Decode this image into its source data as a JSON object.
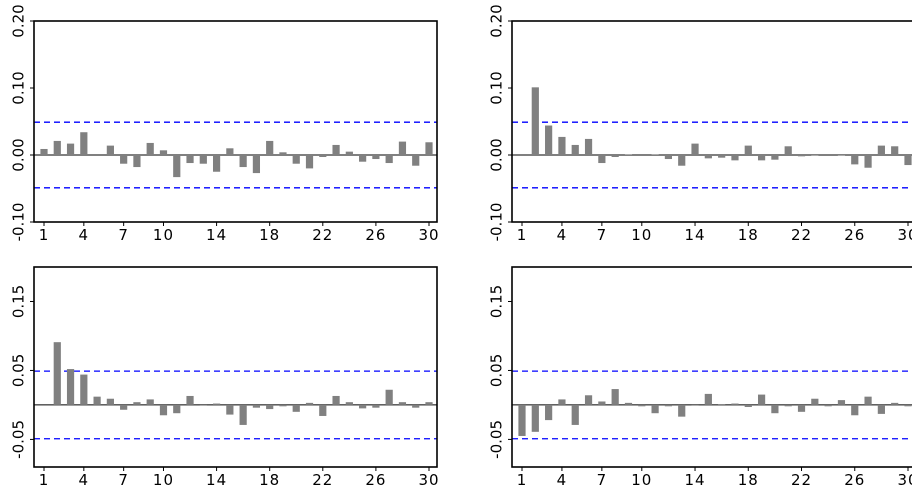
{
  "chart_data": [
    {
      "type": "bar",
      "title": "",
      "xlabel": "",
      "ylabel": "",
      "categories": [
        1,
        2,
        3,
        4,
        5,
        6,
        7,
        8,
        9,
        10,
        11,
        12,
        13,
        14,
        15,
        16,
        17,
        18,
        19,
        20,
        21,
        22,
        23,
        24,
        25,
        26,
        27,
        28,
        29,
        30
      ],
      "values": [
        0.009,
        0.021,
        0.017,
        0.034,
        0.0,
        0.014,
        -0.013,
        -0.018,
        0.018,
        0.007,
        -0.033,
        -0.012,
        -0.013,
        -0.025,
        0.01,
        -0.018,
        -0.027,
        0.021,
        0.004,
        -0.013,
        -0.02,
        -0.003,
        0.015,
        0.005,
        -0.01,
        -0.006,
        -0.012,
        0.02,
        -0.016,
        0.019
      ],
      "confidence_band": [
        0.049,
        -0.049
      ],
      "ylim": [
        -0.1,
        0.2
      ],
      "yticks": [
        "-0.10",
        "0.00",
        "0.10",
        "0.20"
      ],
      "xticks": [
        "1",
        "4",
        "7",
        "10",
        "14",
        "18",
        "22",
        "26",
        "30"
      ],
      "bar_color": "#808080",
      "band_color": "#0000ff"
    },
    {
      "type": "bar",
      "title": "",
      "xlabel": "",
      "ylabel": "",
      "categories": [
        1,
        2,
        3,
        4,
        5,
        6,
        7,
        8,
        9,
        10,
        11,
        12,
        13,
        14,
        15,
        16,
        17,
        18,
        19,
        20,
        21,
        22,
        23,
        24,
        25,
        26,
        27,
        28,
        29,
        30
      ],
      "values": [
        0.0,
        0.101,
        0.044,
        0.027,
        0.015,
        0.024,
        -0.012,
        -0.003,
        0.001,
        0.0,
        0.001,
        -0.006,
        -0.016,
        0.017,
        -0.005,
        -0.004,
        -0.008,
        0.014,
        -0.008,
        -0.007,
        0.013,
        -0.002,
        -0.001,
        0.0,
        -0.001,
        -0.014,
        -0.019,
        0.014,
        0.013,
        -0.015
      ],
      "confidence_band": [
        0.049,
        -0.049
      ],
      "ylim": [
        -0.1,
        0.2
      ],
      "yticks": [
        "-0.10",
        "0.00",
        "0.10",
        "0.20"
      ],
      "xticks": [
        "1",
        "4",
        "7",
        "10",
        "14",
        "18",
        "22",
        "26",
        "30"
      ],
      "bar_color": "#808080",
      "band_color": "#0000ff"
    },
    {
      "type": "bar",
      "title": "",
      "xlabel": "",
      "ylabel": "",
      "categories": [
        1,
        2,
        3,
        4,
        5,
        6,
        7,
        8,
        9,
        10,
        11,
        12,
        13,
        14,
        15,
        16,
        17,
        18,
        19,
        20,
        21,
        22,
        23,
        24,
        25,
        26,
        27,
        28,
        29,
        30
      ],
      "values": [
        0.0,
        0.091,
        0.052,
        0.044,
        0.012,
        0.009,
        -0.007,
        0.004,
        0.008,
        -0.015,
        -0.012,
        0.013,
        -0.001,
        0.002,
        -0.014,
        -0.029,
        -0.004,
        -0.006,
        -0.002,
        -0.01,
        0.003,
        -0.016,
        0.013,
        0.004,
        -0.005,
        -0.004,
        0.022,
        0.004,
        -0.004,
        0.004
      ],
      "confidence_band": [
        0.049,
        -0.049
      ],
      "ylim": [
        -0.09,
        0.2
      ],
      "yticks": [
        "-0.05",
        "0.05",
        "0.15"
      ],
      "xticks": [
        "1",
        "4",
        "7",
        "10",
        "14",
        "18",
        "22",
        "26",
        "30"
      ],
      "bar_color": "#808080",
      "band_color": "#0000ff"
    },
    {
      "type": "bar",
      "title": "",
      "xlabel": "",
      "ylabel": "",
      "categories": [
        1,
        2,
        3,
        4,
        5,
        6,
        7,
        8,
        9,
        10,
        11,
        12,
        13,
        14,
        15,
        16,
        17,
        18,
        19,
        20,
        21,
        22,
        23,
        24,
        25,
        26,
        27,
        28,
        29,
        30
      ],
      "values": [
        -0.045,
        -0.039,
        -0.022,
        0.008,
        -0.029,
        0.014,
        0.005,
        0.023,
        0.003,
        -0.002,
        -0.012,
        -0.002,
        -0.017,
        -0.001,
        0.016,
        0.001,
        0.002,
        -0.003,
        0.015,
        -0.012,
        -0.002,
        -0.01,
        0.009,
        -0.002,
        0.007,
        -0.015,
        0.012,
        -0.013,
        0.003,
        -0.002
      ],
      "confidence_band": [
        0.049,
        -0.049
      ],
      "ylim": [
        -0.09,
        0.2
      ],
      "yticks": [
        "-0.05",
        "0.05",
        "0.15"
      ],
      "xticks": [
        "1",
        "4",
        "7",
        "10",
        "14",
        "18",
        "22",
        "26",
        "30"
      ],
      "bar_color": "#808080",
      "band_color": "#0000ff"
    }
  ]
}
